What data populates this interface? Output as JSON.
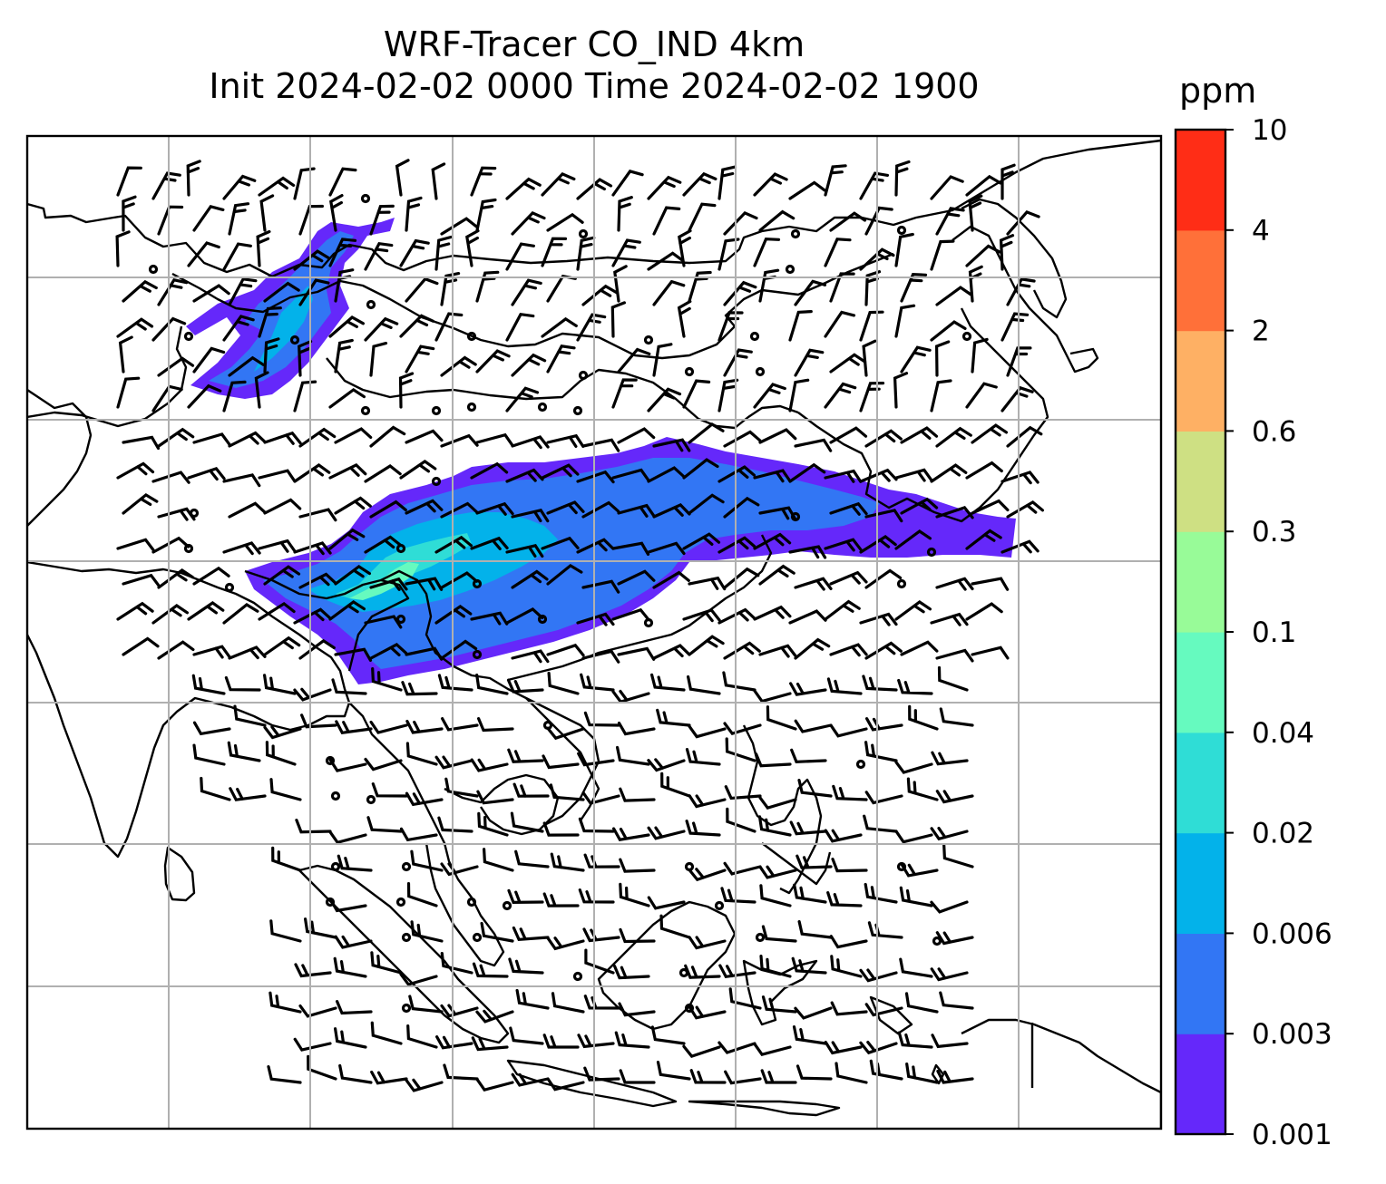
{
  "chart_data": {
    "type": "heatmap",
    "title": "WRF-Tracer CO_IND 4km",
    "subtitle": "Init 2024-02-02 0000 Time 2024-02-02 1900",
    "xlabel": "",
    "ylabel": "",
    "grid": true,
    "colorbar": {
      "label": "ppm",
      "position": "right",
      "levels": [
        "0.001",
        "0.003",
        "0.006",
        "0.02",
        "0.04",
        "0.1",
        "0.3",
        "0.6",
        "2",
        "4",
        "10"
      ],
      "colors": [
        "#6528fa",
        "#3276f4",
        "#03b2ea",
        "#2fddd6",
        "#66fabf",
        "#98fb98",
        "#cee083",
        "#feb064",
        "#ff7039",
        "#ff2d16"
      ]
    },
    "overlays": [
      "coastlines",
      "country borders",
      "wind barbs"
    ]
  }
}
